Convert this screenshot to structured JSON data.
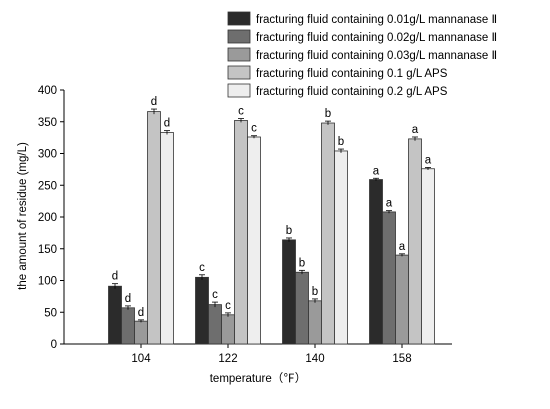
{
  "chart_data": {
    "type": "bar",
    "title": "",
    "xlabel": "temperature（℉）",
    "ylabel": "the amount of residue (mg/L)",
    "ylim": [
      0,
      400
    ],
    "yticks": [
      0,
      50,
      100,
      150,
      200,
      250,
      300,
      350,
      400
    ],
    "grid": false,
    "legend_position": "top-right",
    "categories": [
      "104",
      "122",
      "140",
      "158"
    ],
    "series": [
      {
        "name": "fracturing fluid containing 0.01g/L mannanase Ⅱ",
        "color": "#2b2b2b",
        "values": [
          91,
          105,
          164,
          259
        ],
        "errors": [
          4,
          4,
          3,
          2
        ],
        "labels": [
          "d",
          "c",
          "b",
          "a"
        ]
      },
      {
        "name": "fracturing fluid containing 0.02g/L mannanase Ⅱ",
        "color": "#6e6e6e",
        "values": [
          57,
          62,
          113,
          208
        ],
        "errors": [
          3,
          4,
          3,
          2
        ],
        "labels": [
          "d",
          "c",
          "b",
          "a"
        ]
      },
      {
        "name": "fracturing fluid containing 0.03g/L mannanase Ⅱ",
        "color": "#9a9a9a",
        "values": [
          36,
          46,
          68,
          140
        ],
        "errors": [
          2,
          3,
          3,
          2
        ],
        "labels": [
          "d",
          "c",
          "b",
          "a"
        ]
      },
      {
        "name": "fracturing fluid containing 0.1 g/L APS",
        "color": "#c4c4c4",
        "values": [
          366,
          352,
          348,
          323
        ],
        "errors": [
          4,
          3,
          3,
          3
        ],
        "labels": [
          "d",
          "c",
          "b",
          "a"
        ]
      },
      {
        "name": "fracturing fluid containing 0.2 g/L APS",
        "color": "#eeeeee",
        "values": [
          333,
          326,
          304,
          276
        ],
        "errors": [
          3,
          2,
          3,
          2
        ],
        "labels": [
          "d",
          "c",
          "b",
          "a"
        ]
      }
    ]
  }
}
